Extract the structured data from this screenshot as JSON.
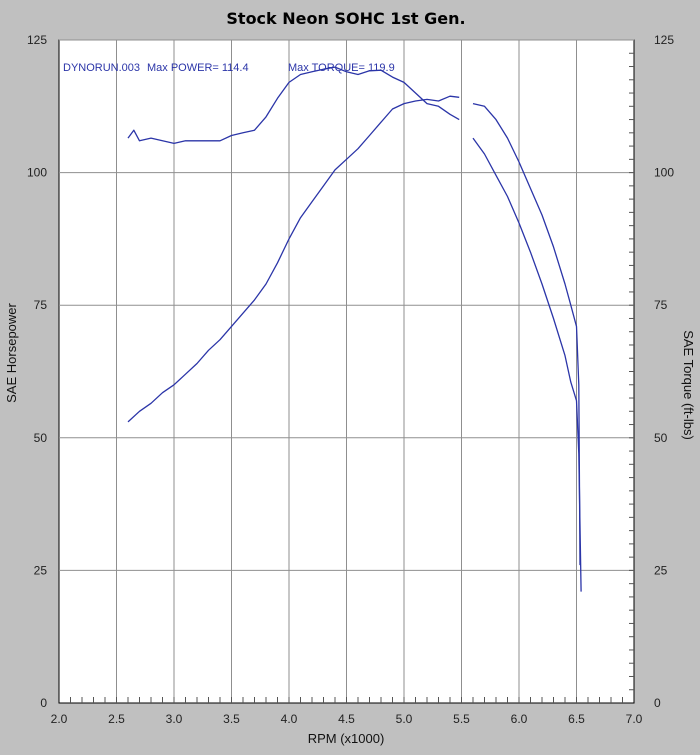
{
  "chart_data": {
    "type": "line",
    "title": "Stock Neon SOHC 1st Gen.",
    "xlabel": "RPM (x1000)",
    "ylabel": "SAE Horsepower",
    "y2label": "SAE Torque (ft-lbs)",
    "xlim": [
      2.0,
      7.0
    ],
    "ylim": [
      0,
      125
    ],
    "y2lim": [
      0,
      125
    ],
    "x_ticks": [
      "2.0",
      "2.5",
      "3.0",
      "3.5",
      "4.0",
      "4.5",
      "5.0",
      "5.5",
      "6.0",
      "6.5",
      "7.0"
    ],
    "y_ticks": [
      "0",
      "25",
      "50",
      "75",
      "100",
      "125"
    ],
    "y2_ticks": [
      "0",
      "25",
      "50",
      "75",
      "100",
      "125"
    ],
    "grid": true,
    "annotations": {
      "run": "DYNORUN.003",
      "max_power": "Max POWER= 114.4",
      "max_torque": "Max TORQUE= 119.9"
    },
    "line_color": "#2b35a8",
    "series": [
      {
        "key": "horsepower",
        "axis": "left",
        "x": [
          2.6,
          2.7,
          2.8,
          2.9,
          3.0,
          3.1,
          3.2,
          3.3,
          3.4,
          3.5,
          3.6,
          3.7,
          3.8,
          3.9,
          4.0,
          4.1,
          4.2,
          4.3,
          4.4,
          4.5,
          4.6,
          4.7,
          4.8,
          4.9,
          5.0,
          5.1,
          5.2,
          5.3,
          5.4,
          5.48
        ],
        "y": [
          53,
          55,
          56.5,
          58.5,
          60,
          62,
          64,
          66.5,
          68.5,
          71,
          73.5,
          76,
          79,
          83,
          87.5,
          91.5,
          94.5,
          97.5,
          100.5,
          102.5,
          104.5,
          107,
          109.5,
          112,
          113,
          113.5,
          113.8,
          113.5,
          114.4,
          114.2
        ]
      },
      {
        "key": "torque",
        "axis": "right",
        "x": [
          2.6,
          2.65,
          2.7,
          2.8,
          2.9,
          3.0,
          3.1,
          3.2,
          3.3,
          3.4,
          3.5,
          3.6,
          3.7,
          3.8,
          3.9,
          4.0,
          4.1,
          4.2,
          4.3,
          4.4,
          4.5,
          4.6,
          4.7,
          4.8,
          4.9,
          5.0,
          5.1,
          5.2,
          5.3,
          5.4,
          5.48
        ],
        "y": [
          106.5,
          108,
          106,
          106.5,
          106,
          105.5,
          106,
          106,
          106,
          106,
          107,
          107.5,
          108,
          110.5,
          114,
          117,
          118.5,
          119,
          119.5,
          119.9,
          119,
          118.5,
          119.2,
          119.3,
          118,
          117,
          115,
          113,
          112.5,
          111,
          110
        ]
      },
      {
        "key": "horsepower_high_rpm",
        "axis": "left",
        "x": [
          5.6,
          5.7,
          5.8,
          5.9,
          6.0,
          6.1,
          6.2,
          6.3,
          6.4,
          6.45,
          6.5,
          6.52,
          6.53
        ],
        "y": [
          113,
          112.5,
          110,
          106.5,
          102,
          97,
          92,
          86,
          79,
          75,
          71,
          60,
          26
        ]
      },
      {
        "key": "torque_high_rpm",
        "axis": "right",
        "x": [
          5.6,
          5.7,
          5.8,
          5.9,
          6.0,
          6.1,
          6.2,
          6.3,
          6.4,
          6.45,
          6.5,
          6.52,
          6.54
        ],
        "y": [
          106.5,
          103.5,
          99.5,
          95.5,
          90.5,
          85,
          79,
          72.5,
          65.5,
          60.5,
          57,
          47,
          21
        ]
      }
    ]
  }
}
